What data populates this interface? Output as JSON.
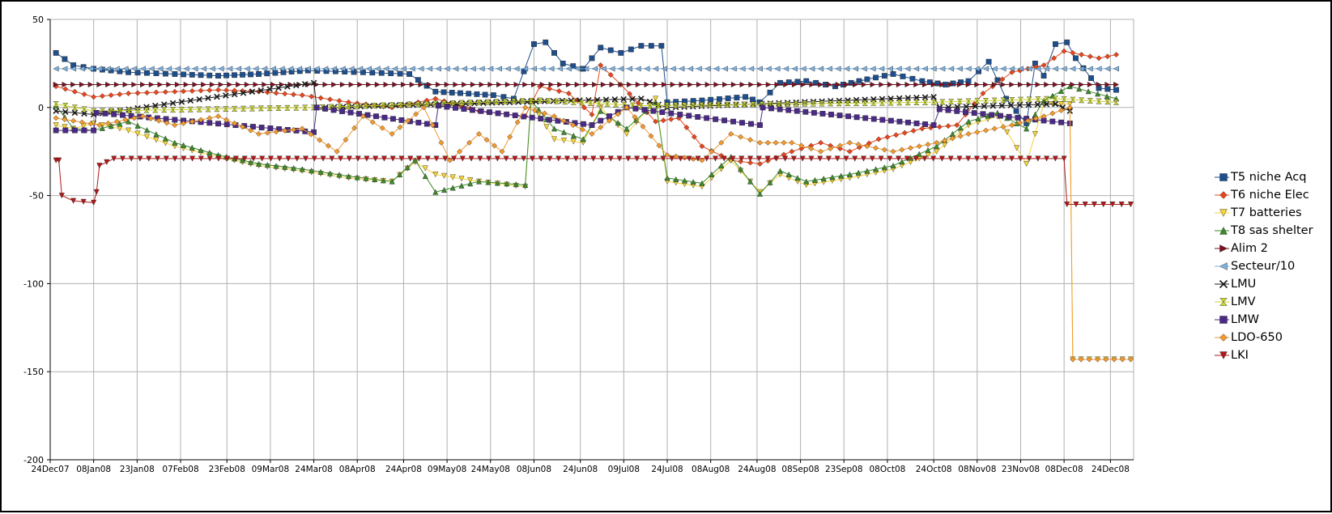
{
  "chart_data": {
    "type": "line",
    "title": "",
    "xlabel": "",
    "ylabel": "",
    "ylim": [
      -200,
      50
    ],
    "yticks": [
      50,
      0,
      -50,
      -100,
      -150,
      -200
    ],
    "xlim": [
      "2007-12-24",
      "2008-12-31"
    ],
    "xticks": [
      "24Dec07",
      "08Jan08",
      "23Jan08",
      "07Feb08",
      "23Feb08",
      "09Mar08",
      "24Mar08",
      "08Apr08",
      "24Apr08",
      "09May08",
      "24May08",
      "08Jun08",
      "24Jun08",
      "09Jul08",
      "24Jul08",
      "08Aug08",
      "24Aug08",
      "08Sep08",
      "23Sep08",
      "08Oct08",
      "24Oct08",
      "08Nov08",
      "23Nov08",
      "08Dec08",
      "24Dec08"
    ],
    "grid": true,
    "legend_position": "right",
    "series": [
      {
        "name": "T5 niche Acq",
        "color": "#1f4e8c",
        "marker": "square",
        "points": [
          [
            "2007-12-26",
            31
          ],
          [
            "2008-01-01",
            24
          ],
          [
            "2008-01-08",
            22
          ],
          [
            "2008-01-20",
            20
          ],
          [
            "2008-02-05",
            19
          ],
          [
            "2008-02-20",
            18
          ],
          [
            "2008-03-05",
            19
          ],
          [
            "2008-03-22",
            21
          ],
          [
            "2008-04-10",
            20
          ],
          [
            "2008-04-26",
            19
          ],
          [
            "2008-05-05",
            9
          ],
          [
            "2008-05-25",
            7
          ],
          [
            "2008-06-01",
            5
          ],
          [
            "2008-06-08",
            36
          ],
          [
            "2008-06-12",
            37
          ],
          [
            "2008-06-18",
            25
          ],
          [
            "2008-06-25",
            22
          ],
          [
            "2008-07-01",
            34
          ],
          [
            "2008-07-08",
            31
          ],
          [
            "2008-07-15",
            35
          ],
          [
            "2008-07-22",
            35
          ],
          [
            "2008-07-24",
            3
          ],
          [
            "2008-08-05",
            4
          ],
          [
            "2008-08-20",
            6
          ],
          [
            "2008-08-25",
            3
          ],
          [
            "2008-09-01",
            14
          ],
          [
            "2008-09-10",
            15
          ],
          [
            "2008-09-20",
            12
          ],
          [
            "2008-10-01",
            16
          ],
          [
            "2008-10-10",
            19
          ],
          [
            "2008-10-20",
            15
          ],
          [
            "2008-10-28",
            13
          ],
          [
            "2008-11-05",
            15
          ],
          [
            "2008-11-12",
            26
          ],
          [
            "2008-11-18",
            5
          ],
          [
            "2008-11-25",
            -9
          ],
          [
            "2008-11-28",
            25
          ],
          [
            "2008-12-01",
            18
          ],
          [
            "2008-12-05",
            36
          ],
          [
            "2008-12-09",
            37
          ],
          [
            "2008-12-12",
            28
          ],
          [
            "2008-12-20",
            11
          ],
          [
            "2008-12-26",
            10
          ]
        ]
      },
      {
        "name": "T6 niche Elec",
        "color": "#e8461d",
        "marker": "diamond",
        "points": [
          [
            "2007-12-26",
            12
          ],
          [
            "2008-01-08",
            6
          ],
          [
            "2008-01-20",
            8
          ],
          [
            "2008-02-05",
            9
          ],
          [
            "2008-02-20",
            10
          ],
          [
            "2008-03-05",
            9
          ],
          [
            "2008-03-20",
            7
          ],
          [
            "2008-04-05",
            3
          ],
          [
            "2008-04-20",
            0
          ],
          [
            "2008-05-05",
            5
          ],
          [
            "2008-05-20",
            -2
          ],
          [
            "2008-06-05",
            -5
          ],
          [
            "2008-06-10",
            12
          ],
          [
            "2008-06-20",
            8
          ],
          [
            "2008-06-28",
            -4
          ],
          [
            "2008-07-01",
            24
          ],
          [
            "2008-07-08",
            13
          ],
          [
            "2008-07-20",
            -8
          ],
          [
            "2008-07-28",
            -6
          ],
          [
            "2008-08-05",
            -22
          ],
          [
            "2008-08-15",
            -30
          ],
          [
            "2008-08-25",
            -32
          ],
          [
            "2008-09-05",
            -25
          ],
          [
            "2008-09-15",
            -20
          ],
          [
            "2008-09-25",
            -25
          ],
          [
            "2008-10-05",
            -18
          ],
          [
            "2008-10-20",
            -12
          ],
          [
            "2008-11-01",
            -10
          ],
          [
            "2008-11-10",
            8
          ],
          [
            "2008-11-20",
            20
          ],
          [
            "2008-12-01",
            24
          ],
          [
            "2008-12-08",
            32
          ],
          [
            "2008-12-20",
            28
          ],
          [
            "2008-12-26",
            30
          ]
        ]
      },
      {
        "name": "T7 batteries",
        "color": "#f5d33a",
        "marker": "triangle-down",
        "points": [
          [
            "2007-12-26",
            -10
          ],
          [
            "2008-01-01",
            -12
          ],
          [
            "2008-01-08",
            -9
          ],
          [
            "2008-01-20",
            -13
          ],
          [
            "2008-02-05",
            -22
          ],
          [
            "2008-02-20",
            -28
          ],
          [
            "2008-03-05",
            -33
          ],
          [
            "2008-03-20",
            -36
          ],
          [
            "2008-04-05",
            -40
          ],
          [
            "2008-04-20",
            -42
          ],
          [
            "2008-04-28",
            -31
          ],
          [
            "2008-05-05",
            -38
          ],
          [
            "2008-05-20",
            -42
          ],
          [
            "2008-06-05",
            -45
          ],
          [
            "2008-06-07",
            3
          ],
          [
            "2008-06-15",
            -18
          ],
          [
            "2008-06-25",
            -20
          ],
          [
            "2008-07-01",
            0
          ],
          [
            "2008-07-10",
            -15
          ],
          [
            "2008-07-20",
            5
          ],
          [
            "2008-07-24",
            -42
          ],
          [
            "2008-08-05",
            -45
          ],
          [
            "2008-08-15",
            -30
          ],
          [
            "2008-08-25",
            -48
          ],
          [
            "2008-09-01",
            -38
          ],
          [
            "2008-09-10",
            -44
          ],
          [
            "2008-09-25",
            -40
          ],
          [
            "2008-10-10",
            -35
          ],
          [
            "2008-10-25",
            -25
          ],
          [
            "2008-11-05",
            -10
          ],
          [
            "2008-11-15",
            -5
          ],
          [
            "2008-11-25",
            -32
          ],
          [
            "2008-12-01",
            2
          ],
          [
            "2008-12-10",
            2
          ],
          [
            "2008-12-11",
            -143
          ],
          [
            "2008-12-31",
            -143
          ]
        ]
      },
      {
        "name": "T8 sas shelter",
        "color": "#3d8a2b",
        "marker": "triangle-up",
        "points": [
          [
            "2007-12-26",
            1
          ],
          [
            "2008-01-01",
            -12
          ],
          [
            "2008-01-08",
            -13
          ],
          [
            "2008-01-20",
            -8
          ],
          [
            "2008-02-05",
            -20
          ],
          [
            "2008-02-20",
            -27
          ],
          [
            "2008-03-05",
            -32
          ],
          [
            "2008-03-20",
            -35
          ],
          [
            "2008-04-05",
            -39
          ],
          [
            "2008-04-20",
            -42
          ],
          [
            "2008-04-28",
            -30
          ],
          [
            "2008-05-05",
            -48
          ],
          [
            "2008-05-20",
            -42
          ],
          [
            "2008-06-05",
            -44
          ],
          [
            "2008-06-07",
            4
          ],
          [
            "2008-06-15",
            -12
          ],
          [
            "2008-06-25",
            -18
          ],
          [
            "2008-07-01",
            -2
          ],
          [
            "2008-07-10",
            -12
          ],
          [
            "2008-07-20",
            3
          ],
          [
            "2008-07-24",
            -40
          ],
          [
            "2008-08-05",
            -43
          ],
          [
            "2008-08-15",
            -28
          ],
          [
            "2008-08-25",
            -49
          ],
          [
            "2008-09-01",
            -36
          ],
          [
            "2008-09-10",
            -42
          ],
          [
            "2008-09-25",
            -38
          ],
          [
            "2008-10-10",
            -33
          ],
          [
            "2008-10-25",
            -22
          ],
          [
            "2008-11-05",
            -8
          ],
          [
            "2008-11-15",
            -3
          ],
          [
            "2008-11-25",
            -12
          ],
          [
            "2008-12-01",
            4
          ],
          [
            "2008-12-10",
            12
          ],
          [
            "2008-12-26",
            5
          ]
        ]
      },
      {
        "name": "Alim 2",
        "color": "#7a1020",
        "marker": "triangle-right",
        "points": [
          [
            "2007-12-26",
            13
          ],
          [
            "2008-12-26",
            13
          ]
        ]
      },
      {
        "name": "Secteur/10",
        "color": "#7fb1e0",
        "marker": "triangle-left",
        "points": [
          [
            "2007-12-26",
            22
          ],
          [
            "2008-12-26",
            22
          ]
        ]
      },
      {
        "name": "LMU",
        "color": "#1a1a1a",
        "marker": "x",
        "points": [
          [
            "2007-12-26",
            -2
          ],
          [
            "2008-01-08",
            -4
          ],
          [
            "2008-03-24",
            14
          ],
          [
            "2008-03-25",
            0
          ],
          [
            "2008-07-15",
            5
          ],
          [
            "2008-07-24",
            0
          ],
          [
            "2008-10-24",
            6
          ],
          [
            "2008-10-26",
            0
          ],
          [
            "2008-12-05",
            2
          ],
          [
            "2008-12-10",
            -2
          ]
        ]
      },
      {
        "name": "LMV",
        "color": "#c8d42a",
        "marker": "hourglass",
        "points": [
          [
            "2007-12-26",
            2
          ],
          [
            "2008-01-08",
            -2
          ],
          [
            "2008-03-24",
            0
          ],
          [
            "2008-06-10",
            4
          ],
          [
            "2008-07-15",
            1
          ],
          [
            "2008-10-24",
            3
          ],
          [
            "2008-12-05",
            5
          ],
          [
            "2008-12-26",
            3
          ]
        ]
      },
      {
        "name": "LMW",
        "color": "#4b2a85",
        "marker": "square",
        "points": [
          [
            "2007-12-26",
            -13
          ],
          [
            "2008-01-08",
            -13
          ],
          [
            "2008-01-09",
            -3
          ],
          [
            "2008-03-24",
            -14
          ],
          [
            "2008-03-25",
            0
          ],
          [
            "2008-05-05",
            -10
          ],
          [
            "2008-05-06",
            1
          ],
          [
            "2008-06-28",
            -10
          ],
          [
            "2008-07-10",
            0
          ],
          [
            "2008-08-25",
            -10
          ],
          [
            "2008-08-26",
            0
          ],
          [
            "2008-10-24",
            -10
          ],
          [
            "2008-10-26",
            -1
          ],
          [
            "2008-12-10",
            -9
          ]
        ]
      },
      {
        "name": "LDO-650",
        "color": "#f29a2e",
        "marker": "diamond",
        "points": [
          [
            "2007-12-26",
            -6
          ],
          [
            "2008-01-10",
            -10
          ],
          [
            "2008-01-25",
            -5
          ],
          [
            "2008-02-05",
            -10
          ],
          [
            "2008-02-20",
            -5
          ],
          [
            "2008-03-05",
            -15
          ],
          [
            "2008-03-20",
            -12
          ],
          [
            "2008-04-01",
            -25
          ],
          [
            "2008-04-10",
            -5
          ],
          [
            "2008-04-20",
            -15
          ],
          [
            "2008-05-01",
            0
          ],
          [
            "2008-05-10",
            -30
          ],
          [
            "2008-05-20",
            -15
          ],
          [
            "2008-05-28",
            -25
          ],
          [
            "2008-06-05",
            0
          ],
          [
            "2008-06-15",
            -5
          ],
          [
            "2008-06-28",
            -15
          ],
          [
            "2008-07-10",
            0
          ],
          [
            "2008-07-24",
            -27
          ],
          [
            "2008-08-05",
            -30
          ],
          [
            "2008-08-15",
            -15
          ],
          [
            "2008-08-25",
            -20
          ],
          [
            "2008-09-05",
            -20
          ],
          [
            "2008-09-15",
            -25
          ],
          [
            "2008-09-25",
            -20
          ],
          [
            "2008-10-10",
            -25
          ],
          [
            "2008-10-25",
            -20
          ],
          [
            "2008-11-05",
            -15
          ],
          [
            "2008-11-20",
            -10
          ],
          [
            "2008-12-01",
            -5
          ],
          [
            "2008-12-10",
            0
          ],
          [
            "2008-12-11",
            -143
          ],
          [
            "2008-12-31",
            -143
          ]
        ]
      },
      {
        "name": "LKI",
        "color": "#b01818",
        "marker": "triangle-down",
        "points": [
          [
            "2007-12-26",
            -30
          ],
          [
            "2007-12-27",
            -30
          ],
          [
            "2007-12-28",
            -50
          ],
          [
            "2008-01-01",
            -53
          ],
          [
            "2008-01-08",
            -54
          ],
          [
            "2008-01-09",
            -48
          ],
          [
            "2008-01-10",
            -33
          ],
          [
            "2008-01-15",
            -29
          ],
          [
            "2008-12-08",
            -29
          ],
          [
            "2008-12-09",
            -55
          ],
          [
            "2008-12-31",
            -55
          ]
        ]
      }
    ]
  }
}
